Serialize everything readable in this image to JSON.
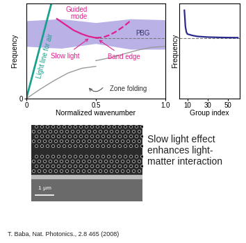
{
  "chart_data": [
    {
      "type": "line",
      "x_label": "Normalized wavenumber",
      "y_label": "Frequency",
      "xlim": [
        0,
        1
      ],
      "ylim": [
        0,
        1
      ],
      "xticks": [
        0,
        0.5,
        {
          "value": 1,
          "label": "1.0"
        }
      ],
      "yticks": [
        0
      ],
      "grid": false,
      "tick_labels": true,
      "band_edge": 0.64,
      "series": [
        {
          "name": "PBG",
          "type": "area",
          "color": "#8c80d8",
          "x": [
            0,
            0.25,
            0.5,
            0.75,
            1.0
          ],
          "values": [
            0.82,
            0.84,
            0.8,
            0.84,
            0.83
          ],
          "lower": [
            0.55,
            0.53,
            0.58,
            0.52,
            0.52
          ]
        },
        {
          "type": "line",
          "color": "#9a9a9a",
          "line_style": "solid",
          "x": [
            0,
            0.1,
            0.2,
            0.3,
            0.4,
            0.5
          ],
          "values": [
            0,
            0.1,
            0.19,
            0.27,
            0.32,
            0.34
          ]
        },
        {
          "type": "line",
          "color": "#9a9a9a",
          "line_style": "solid",
          "x": [
            0.5,
            0.6,
            0.7,
            0.8,
            0.9,
            1.0
          ],
          "values": [
            0.4,
            0.43,
            0.47,
            0.51,
            0.54,
            0.55
          ]
        },
        {
          "name": "Light line for air",
          "type": "line",
          "color": "#1aa08c",
          "line_style": "solid",
          "x": [
            0,
            0.18
          ],
          "values": [
            0,
            1
          ]
        },
        {
          "name": "Guided mode",
          "type": "line",
          "color": "#e0208c",
          "line_style": "solid",
          "x": [
            0.22,
            0.28,
            0.34,
            0.4,
            0.45,
            0.5
          ],
          "values": [
            0.84,
            0.78,
            0.72,
            0.68,
            0.655,
            0.64
          ]
        },
        {
          "type": "line",
          "color": "#e0208c",
          "line_style": "dashed",
          "x": [
            0.5,
            0.55,
            0.6,
            0.65,
            0.7,
            0.75
          ],
          "values": [
            0.64,
            0.645,
            0.67,
            0.71,
            0.76,
            0.82
          ]
        }
      ],
      "annotations": [
        "Slow light",
        "Band edge",
        "Zone folding"
      ]
    },
    {
      "type": "line",
      "x_label": "Group index",
      "y_label": "Frequency",
      "xlim": [
        2,
        62
      ],
      "ylim": [
        0,
        1
      ],
      "xticks": [
        10,
        30,
        50
      ],
      "yticks": [],
      "grid": false,
      "tick_labels": "x",
      "band_edge": 0.64,
      "series": [
        {
          "type": "line",
          "color": "#2a2a8c",
          "line_style": "solid",
          "x": [
            7,
            7.5,
            8,
            9,
            10,
            15,
            20,
            30,
            40,
            50,
            60
          ],
          "values": [
            0.93,
            0.85,
            0.76,
            0.7,
            0.68,
            0.665,
            0.655,
            0.648,
            0.645,
            0.643,
            0.642
          ]
        }
      ]
    }
  ],
  "image": {
    "scale_bar": "1 μm"
  },
  "caption": [
    "Slow light effect",
    "enhances light-",
    "matter interaction"
  ],
  "citation": "T. Baba, Nat. Photonics., 2.8 465 (2008)"
}
